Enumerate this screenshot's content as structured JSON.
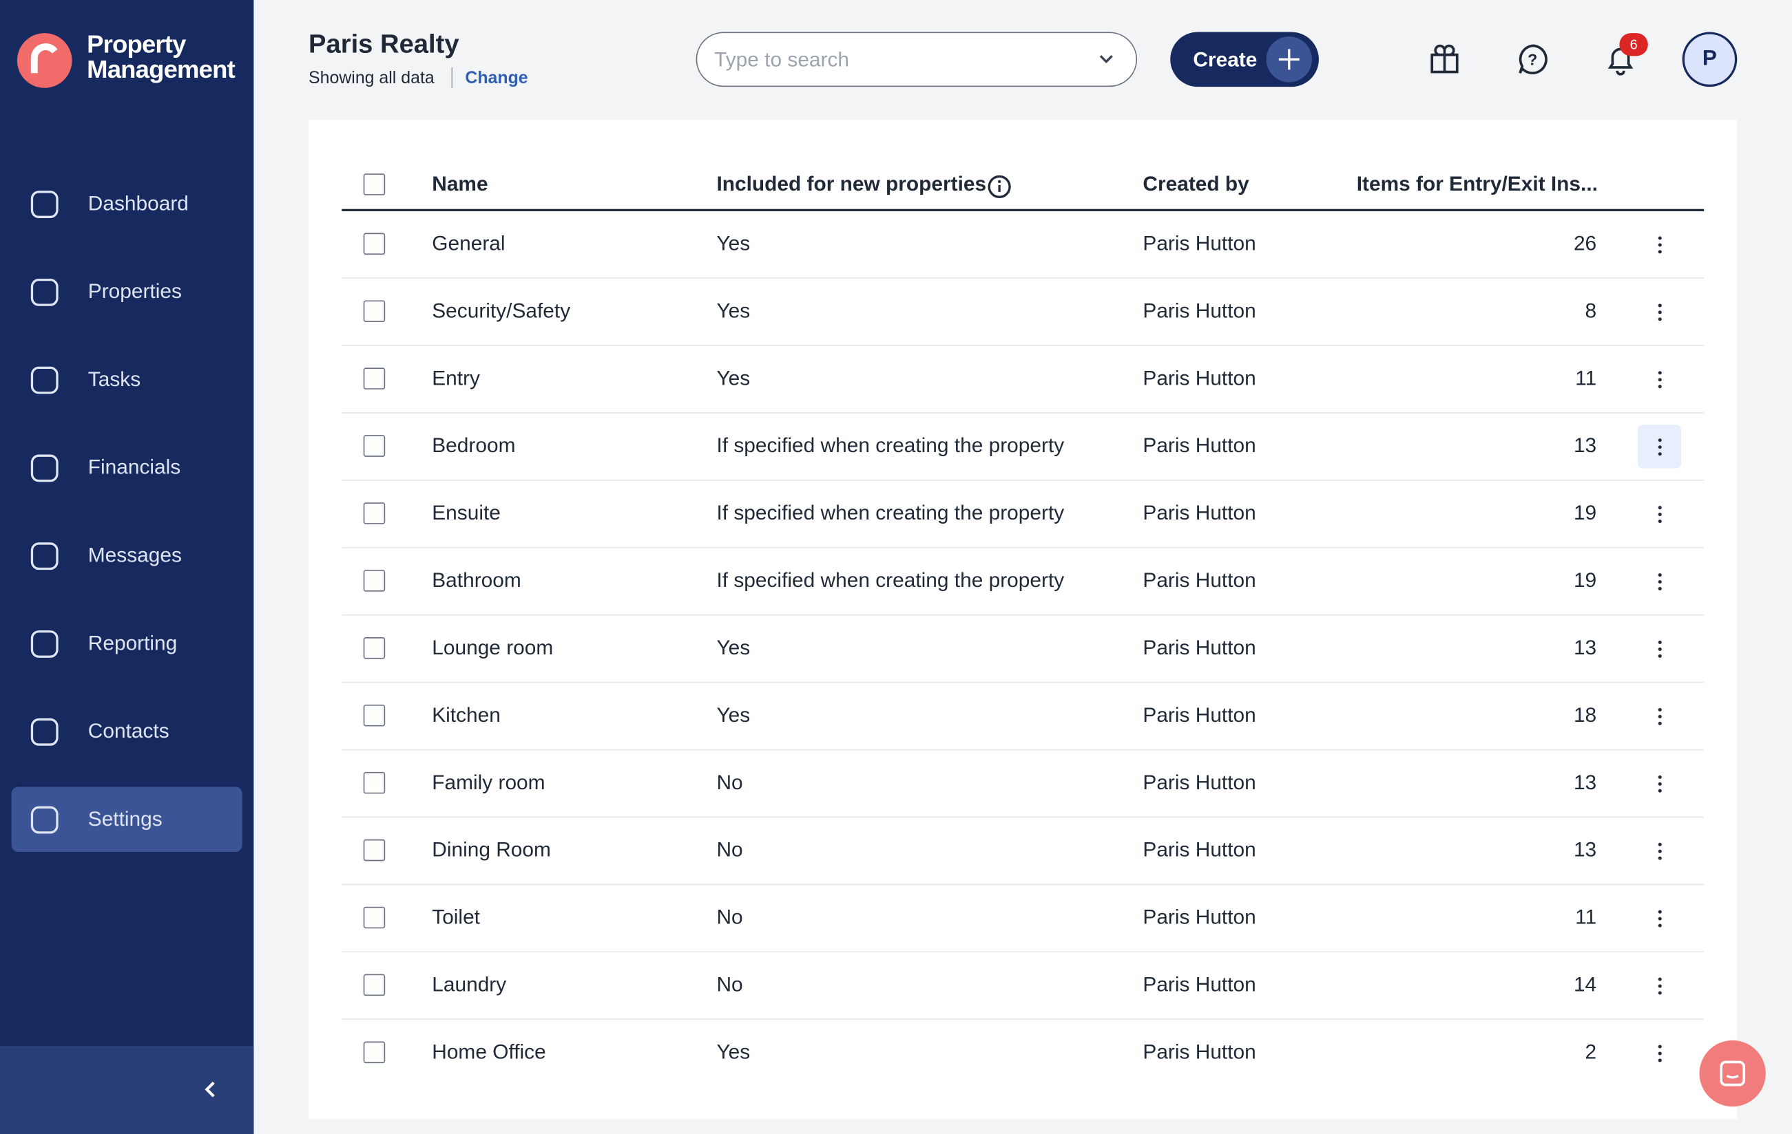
{
  "sidebar": {
    "brand": "Property Management",
    "nav": [
      "Dashboard",
      "Properties",
      "Tasks",
      "Financials",
      "Messages",
      "Reporting",
      "Contacts",
      "Settings"
    ],
    "active": "Settings"
  },
  "header": {
    "title": "Paris Realty",
    "subtitle": "Showing all data",
    "change": "Change",
    "search_placeholder": "Type to search",
    "create": "Create",
    "notifications": "6",
    "avatar": "P"
  },
  "table": {
    "columns": [
      "Name",
      "Included for new properties",
      "Created by",
      "Items for Entry/Exit Ins..."
    ],
    "rows": [
      [
        "General",
        "Yes",
        "Paris Hutton",
        "26"
      ],
      [
        "Security/Safety",
        "Yes",
        "Paris Hutton",
        "8"
      ],
      [
        "Entry",
        "Yes",
        "Paris Hutton",
        "11"
      ],
      [
        "Bedroom",
        "If specified when creating the property",
        "Paris Hutton",
        "13"
      ],
      [
        "Ensuite",
        "If specified when creating the property",
        "Paris Hutton",
        "19"
      ],
      [
        "Bathroom",
        "If specified when creating the property",
        "Paris Hutton",
        "19"
      ],
      [
        "Lounge room",
        "Yes",
        "Paris Hutton",
        "13"
      ],
      [
        "Kitchen",
        "Yes",
        "Paris Hutton",
        "18"
      ],
      [
        "Family room",
        "No",
        "Paris Hutton",
        "13"
      ],
      [
        "Dining Room",
        "No",
        "Paris Hutton",
        "13"
      ],
      [
        "Toilet",
        "No",
        "Paris Hutton",
        "11"
      ],
      [
        "Laundry",
        "No",
        "Paris Hutton",
        "14"
      ],
      [
        "Home Office",
        "Yes",
        "Paris Hutton",
        "2"
      ]
    ]
  }
}
